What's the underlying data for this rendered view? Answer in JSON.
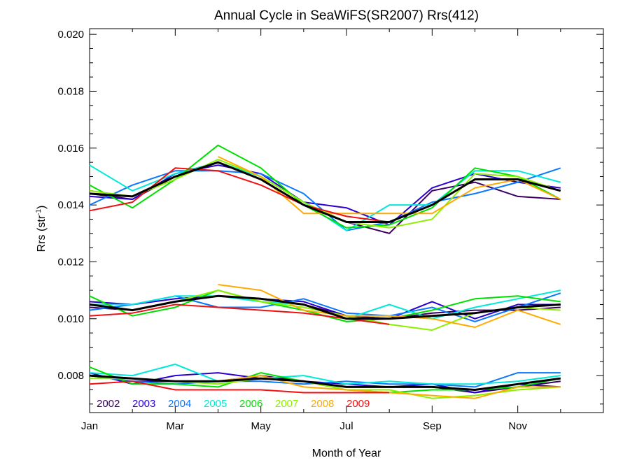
{
  "chart_data": {
    "type": "line",
    "title": "Annual Cycle in SeaWiFS(SR2007) Rrs(412)",
    "xlabel": "Month of Year",
    "ylabel": "Rrs (str",
    "ylabel_sup": "-1",
    "ylabel_close": ")",
    "xlim": [
      1,
      13
    ],
    "ylim": [
      0.0067,
      0.0202
    ],
    "x_ticks": [
      {
        "value": 1,
        "label": "Jan"
      },
      {
        "value": 3,
        "label": "Mar"
      },
      {
        "value": 5,
        "label": "May"
      },
      {
        "value": 7,
        "label": "Jul"
      },
      {
        "value": 9,
        "label": "Sep"
      },
      {
        "value": 11,
        "label": "Nov"
      }
    ],
    "y_ticks": [
      {
        "value": 0.008,
        "label": "0.008"
      },
      {
        "value": 0.01,
        "label": "0.010"
      },
      {
        "value": 0.012,
        "label": "0.012"
      },
      {
        "value": 0.014,
        "label": "0.014"
      },
      {
        "value": 0.016,
        "label": "0.016"
      },
      {
        "value": 0.018,
        "label": "0.018"
      },
      {
        "value": 0.02,
        "label": "0.020"
      }
    ],
    "legend_position": "bottom-left inside plot",
    "x": [
      1,
      2,
      3,
      4,
      5,
      6,
      7,
      8,
      9,
      10,
      11,
      12
    ],
    "series": [
      {
        "name": "2002",
        "color": "#3b0060",
        "groups": [
          [
            0.0144,
            0.0142,
            0.015,
            0.0155,
            0.0149,
            0.014,
            0.0134,
            0.013,
            0.0145,
            0.0148,
            0.0143,
            0.0142
          ],
          [
            0.0104,
            0.0103,
            0.0106,
            0.0108,
            0.0107,
            0.0105,
            0.0101,
            0.01,
            0.0102,
            0.0103,
            0.0103,
            0.0104
          ],
          [
            0.008,
            0.0078,
            0.0078,
            0.0078,
            0.008,
            0.0078,
            0.0076,
            0.0076,
            0.0076,
            0.0074,
            0.0076,
            0.0078
          ]
        ]
      },
      {
        "name": "2003",
        "color": "#2a00d0",
        "groups": [
          [
            0.0143,
            0.0142,
            0.0151,
            0.0154,
            0.0151,
            0.0141,
            0.0139,
            0.0133,
            0.0146,
            0.0151,
            0.0148,
            0.0146
          ],
          [
            0.0106,
            0.0105,
            0.0107,
            0.0108,
            0.0107,
            0.0106,
            0.0101,
            0.01,
            0.0106,
            0.01,
            0.0105,
            0.0105
          ],
          [
            0.0081,
            0.0077,
            0.008,
            0.0081,
            0.0079,
            0.0078,
            0.0077,
            0.0076,
            0.0077,
            0.0074,
            0.0077,
            0.0076
          ]
        ]
      },
      {
        "name": "2004",
        "color": "#0a78ff",
        "groups": [
          [
            0.014,
            0.0147,
            0.0152,
            0.0152,
            0.0151,
            0.0144,
            0.0131,
            0.0134,
            0.0141,
            0.0144,
            0.0148,
            0.0153
          ],
          [
            0.0103,
            0.0105,
            0.0108,
            0.0104,
            0.0104,
            0.0107,
            0.0102,
            0.0101,
            0.0104,
            0.0099,
            0.0104,
            0.0109
          ],
          [
            0.008,
            0.0078,
            0.0077,
            0.0078,
            0.0078,
            0.0077,
            0.0078,
            0.0077,
            0.0077,
            0.0076,
            0.0081,
            0.0081
          ]
        ]
      },
      {
        "name": "2005",
        "color": "#00ead8",
        "groups": [
          [
            0.0154,
            0.0145,
            0.0151,
            0.0155,
            0.015,
            0.0141,
            0.0131,
            0.014,
            0.014,
            0.0152,
            0.0152,
            0.0148
          ],
          [
            0.0105,
            0.0105,
            0.0108,
            0.0108,
            0.0106,
            0.0105,
            0.01,
            0.0105,
            0.01,
            0.0104,
            0.0107,
            0.011
          ],
          [
            0.0081,
            0.008,
            0.0084,
            0.0078,
            0.0079,
            0.008,
            0.0077,
            0.0078,
            0.0077,
            0.0077,
            0.0078,
            0.008
          ]
        ]
      },
      {
        "name": "2006",
        "color": "#00e000",
        "groups": [
          [
            0.0147,
            0.0139,
            0.0149,
            0.0161,
            0.0153,
            0.014,
            0.0132,
            0.0133,
            0.0139,
            0.0153,
            0.015,
            0.0142
          ],
          [
            0.0108,
            0.0101,
            0.0104,
            0.011,
            0.0106,
            0.0103,
            0.0099,
            0.01,
            0.0103,
            0.0107,
            0.0108,
            0.0106
          ],
          [
            0.0083,
            0.0077,
            0.0077,
            0.0076,
            0.0081,
            0.0078,
            0.0075,
            0.0074,
            0.0075,
            0.0075,
            0.0076,
            0.0079
          ]
        ]
      },
      {
        "name": "2007",
        "color": "#8cf000",
        "groups": [
          [
            0.0145,
            0.0143,
            0.0149,
            0.0156,
            0.015,
            0.0141,
            0.0134,
            0.0132,
            0.0135,
            0.0151,
            0.015,
            0.0145
          ],
          [
            0.0105,
            0.0103,
            0.0106,
            0.011,
            0.0106,
            0.0104,
            0.0101,
            0.0098,
            0.0096,
            0.0102,
            0.0104,
            0.0103
          ],
          [
            0.0079,
            0.0079,
            0.0078,
            0.0077,
            0.0079,
            0.0078,
            0.0075,
            0.0075,
            0.0072,
            0.0073,
            0.0075,
            0.0076
          ]
        ]
      },
      {
        "name": "2008",
        "color": "#ffaa00",
        "groups": [
          [
            null,
            null,
            null,
            0.0157,
            0.015,
            0.0137,
            0.0137,
            0.0137,
            0.0137,
            0.0146,
            0.0149,
            0.0142
          ],
          [
            null,
            null,
            null,
            0.0112,
            0.011,
            0.0103,
            0.0101,
            0.0101,
            0.01,
            0.0097,
            0.0103,
            0.0098
          ],
          [
            null,
            null,
            null,
            0.0078,
            0.008,
            0.0076,
            0.0075,
            0.0074,
            0.0073,
            0.0072,
            0.0076,
            0.0076
          ]
        ]
      },
      {
        "name": "2009",
        "color": "#f01010",
        "groups": [
          [
            0.0138,
            0.0141,
            0.0153,
            0.0152,
            0.0147,
            0.014,
            0.0136,
            0.0134
          ],
          [
            0.0101,
            0.0102,
            0.0105,
            0.0104,
            0.0103,
            0.0102,
            0.01,
            0.0098
          ],
          [
            0.0077,
            0.0078,
            0.0075,
            0.0075,
            0.0075,
            0.0074,
            0.0074,
            0.0074
          ]
        ]
      }
    ],
    "mean_series": {
      "color": "#000000",
      "groups": [
        [
          0.0144,
          0.0143,
          0.015,
          0.0155,
          0.0149,
          0.014,
          0.0134,
          0.0134,
          0.014,
          0.0149,
          0.0149,
          0.0145
        ],
        [
          0.0105,
          0.0103,
          0.0106,
          0.0108,
          0.0107,
          0.0105,
          0.01,
          0.01,
          0.0101,
          0.0102,
          0.0104,
          0.0105
        ],
        [
          0.008,
          0.0079,
          0.0078,
          0.0078,
          0.0079,
          0.0078,
          0.0076,
          0.0076,
          0.0076,
          0.0075,
          0.0077,
          0.0079
        ]
      ]
    }
  }
}
